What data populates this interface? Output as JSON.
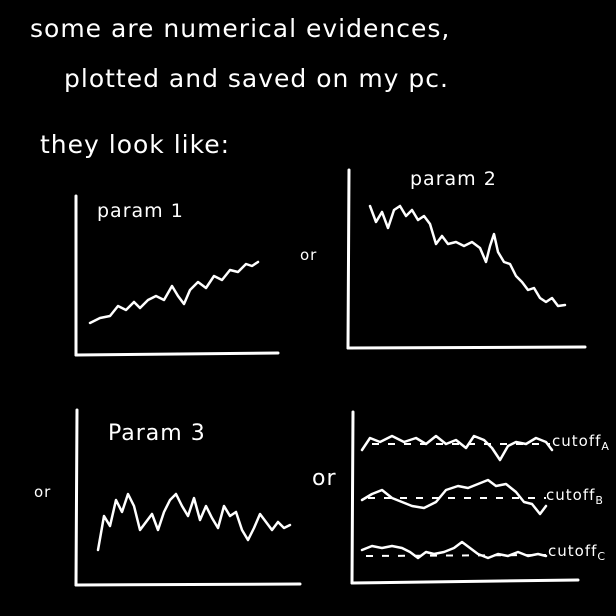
{
  "heading": {
    "line1": "some are numerical evidences,",
    "line2": "plotted and saved on my pc.",
    "line3": "they look like:"
  },
  "panels": [
    {
      "label": "param 1"
    },
    {
      "label": "param 2"
    },
    {
      "label": "Param 3"
    },
    {
      "labels": [
        "cutoff",
        "cutoff",
        "cutoff"
      ],
      "subscripts": [
        "A",
        "B",
        "C"
      ]
    }
  ],
  "separators": [
    "or",
    "or",
    "or"
  ],
  "colors": {
    "background": "#000000",
    "ink": "#ffffff"
  }
}
